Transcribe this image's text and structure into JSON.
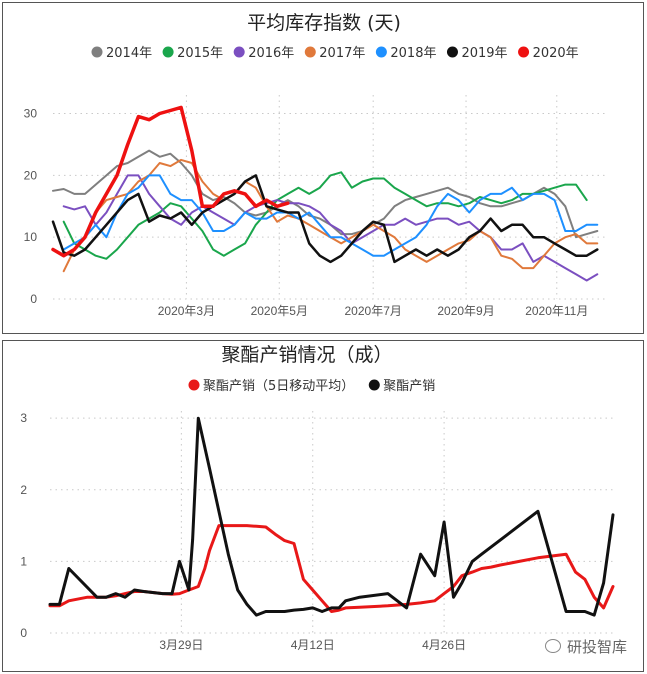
{
  "chart_data": [
    {
      "type": "line",
      "title": "平均库存指数 (天)",
      "ylim": [
        0,
        33
      ],
      "yticks": [
        0,
        10,
        20,
        30
      ],
      "x_range": [
        0,
        52
      ],
      "xticks": [
        {
          "label": "2020年3月",
          "pos": 12.5
        },
        {
          "label": "2020年5月",
          "pos": 21.2
        },
        {
          "label": "2020年7月",
          "pos": 30
        },
        {
          "label": "2020年9月",
          "pos": 38.7
        },
        {
          "label": "2020年11月",
          "pos": 47.2
        }
      ],
      "series": [
        {
          "name": "2014年",
          "color": "#7f7f7f",
          "width": 2,
          "values": [
            17.5,
            17.8,
            17,
            17,
            18.5,
            20,
            21.5,
            22,
            23,
            24,
            23,
            23.5,
            22,
            20,
            17,
            16,
            16.5,
            15.5,
            14,
            13.5,
            14,
            15,
            16,
            15,
            13.5,
            13,
            12,
            10.5,
            10.5,
            11,
            12,
            13,
            15,
            16,
            16.5,
            17,
            17.5,
            18,
            17,
            16.5,
            15.5,
            15,
            15,
            15.5,
            16,
            17,
            18,
            17,
            15,
            10,
            10.5,
            11
          ]
        },
        {
          "name": "2015年",
          "color": "#1aa64c",
          "width": 2,
          "values": [
            null,
            12.5,
            9,
            8,
            7,
            6.5,
            8,
            10,
            12,
            13,
            14,
            15.5,
            15,
            13,
            11,
            8,
            7,
            8,
            9,
            12,
            14,
            16,
            17,
            18,
            17,
            18,
            20,
            20.5,
            18,
            19,
            19.5,
            19.5,
            18,
            17,
            16,
            15,
            15.5,
            15.5,
            15,
            15.5,
            16.5,
            16,
            15.5,
            16,
            17,
            17,
            17.5,
            18,
            18.5,
            18.5,
            16
          ]
        },
        {
          "name": "2016年",
          "color": "#7b4fc0",
          "width": 2,
          "values": [
            null,
            15,
            14.5,
            15,
            12,
            14,
            17,
            20,
            20,
            17,
            15,
            13,
            12,
            14,
            15,
            14,
            13,
            12,
            14,
            15,
            15.5,
            16,
            15.5,
            15.5,
            15,
            14,
            12,
            11,
            9,
            10,
            11,
            12,
            12,
            13,
            12,
            12.5,
            13,
            13,
            12,
            12.5,
            11,
            10,
            8,
            8,
            9,
            6,
            7,
            6,
            5,
            4,
            3,
            4
          ]
        },
        {
          "name": "2017年",
          "color": "#e0793b",
          "width": 2,
          "values": [
            null,
            4.5,
            8,
            10,
            14,
            16,
            16.5,
            17,
            19,
            20,
            22,
            21.5,
            22.5,
            22,
            19,
            17,
            16,
            17,
            19,
            18,
            15,
            12.5,
            13.5,
            13,
            12,
            11,
            10,
            9,
            10,
            11,
            12,
            11,
            10,
            8,
            7,
            6,
            7,
            8,
            9,
            9.5,
            11,
            10,
            7,
            6.5,
            5,
            5,
            7,
            9,
            10,
            10.5,
            9,
            9
          ]
        },
        {
          "name": "2018年",
          "color": "#1e90ff",
          "width": 2,
          "values": [
            null,
            8,
            9,
            10,
            12,
            10,
            14,
            17,
            18,
            20,
            20,
            17,
            16,
            16,
            14,
            11,
            11,
            12,
            14,
            13,
            13,
            14,
            14,
            13,
            14,
            12,
            10,
            10,
            9,
            8,
            7,
            7,
            8,
            9,
            10,
            12,
            15,
            17,
            16,
            14,
            16,
            17,
            17,
            18,
            16,
            17,
            17,
            16,
            11,
            11,
            12,
            12
          ]
        },
        {
          "name": "2019年",
          "color": "#111111",
          "width": 2.5,
          "values": [
            12.5,
            7.5,
            7,
            8,
            10,
            12,
            14,
            16,
            17,
            12.5,
            13.5,
            13,
            14,
            12,
            14,
            15,
            16,
            17,
            19,
            20,
            15,
            14.5,
            14,
            14,
            9,
            7,
            6,
            7,
            9,
            11,
            12.5,
            12,
            6,
            7,
            8,
            7,
            8,
            7,
            8,
            10,
            11,
            13,
            11,
            12,
            12,
            10,
            10,
            9,
            8,
            7,
            7,
            8
          ]
        },
        {
          "name": "2020年",
          "color": "#ee1111",
          "width": 3.5,
          "values": [
            8,
            7,
            8,
            10,
            14,
            17,
            20,
            25,
            29.5,
            29,
            30,
            30.5,
            31,
            24,
            15,
            15,
            17,
            17.5,
            17,
            15,
            16,
            15,
            15.5
          ]
        }
      ]
    },
    {
      "type": "line",
      "title": "聚酯产销情况（成）",
      "ylim": [
        0,
        3.1
      ],
      "yticks": [
        0,
        1,
        2,
        3
      ],
      "x_range": [
        0,
        60
      ],
      "xticks": [
        {
          "label": "3月29日",
          "pos": 14
        },
        {
          "label": "4月12日",
          "pos": 28
        },
        {
          "label": "4月26日",
          "pos": 42
        }
      ],
      "series": [
        {
          "name": "聚酯产销（5日移动平均）",
          "color": "#e81818",
          "width": 3,
          "x": [
            0,
            1,
            2,
            4,
            6,
            7,
            8,
            9,
            10,
            12,
            13,
            13.8,
            14.8,
            15.2,
            15.8,
            16.5,
            17,
            18,
            19,
            20,
            21,
            22,
            23,
            24,
            25,
            26,
            27,
            28,
            29,
            30,
            30.8,
            31.5,
            33,
            36,
            38,
            39.5,
            41,
            42,
            43,
            43.9,
            45,
            46,
            47,
            48,
            50,
            52,
            55,
            56,
            57,
            58,
            59,
            60
          ],
          "values": [
            0.38,
            0.38,
            0.45,
            0.5,
            0.5,
            0.52,
            0.55,
            0.58,
            0.58,
            0.55,
            0.54,
            0.55,
            0.6,
            0.62,
            0.65,
            0.9,
            1.15,
            1.5,
            1.5,
            1.5,
            1.5,
            1.49,
            1.48,
            1.38,
            1.29,
            1.25,
            0.75,
            0.6,
            0.45,
            0.3,
            0.32,
            0.35,
            0.36,
            0.38,
            0.4,
            0.42,
            0.45,
            0.55,
            0.65,
            0.8,
            0.85,
            0.9,
            0.92,
            0.95,
            1.0,
            1.05,
            1.1,
            0.85,
            0.75,
            0.5,
            0.35,
            0.65
          ]
        },
        {
          "name": "聚酯产销",
          "color": "#111111",
          "width": 3,
          "x": [
            0,
            1,
            2,
            5,
            6,
            7,
            8,
            9,
            10,
            12,
            13,
            13.8,
            14.8,
            15.2,
            15.8,
            17,
            18,
            19,
            20,
            21,
            22,
            23,
            24,
            25,
            26,
            27,
            28,
            29,
            30,
            30.8,
            31.5,
            33,
            36,
            38,
            39.5,
            41,
            42,
            43,
            43.9,
            45,
            46,
            47,
            48,
            50,
            52,
            55,
            56,
            57,
            58,
            59,
            60
          ],
          "values": [
            0.4,
            0.4,
            0.9,
            0.5,
            0.5,
            0.55,
            0.5,
            0.6,
            0.58,
            0.55,
            0.55,
            1.0,
            0.6,
            1.3,
            3.0,
            2.3,
            1.7,
            1.1,
            0.6,
            0.4,
            0.25,
            0.3,
            0.3,
            0.3,
            0.32,
            0.33,
            0.35,
            0.3,
            0.35,
            0.35,
            0.45,
            0.5,
            0.55,
            0.35,
            1.1,
            0.8,
            1.55,
            0.5,
            0.7,
            1.0,
            1.1,
            1.2,
            1.3,
            1.5,
            1.7,
            0.3,
            0.3,
            0.3,
            0.25,
            0.7,
            1.65
          ]
        }
      ]
    }
  ],
  "watermark": {
    "text": "研投智库",
    "icon": "wechat-icon"
  }
}
